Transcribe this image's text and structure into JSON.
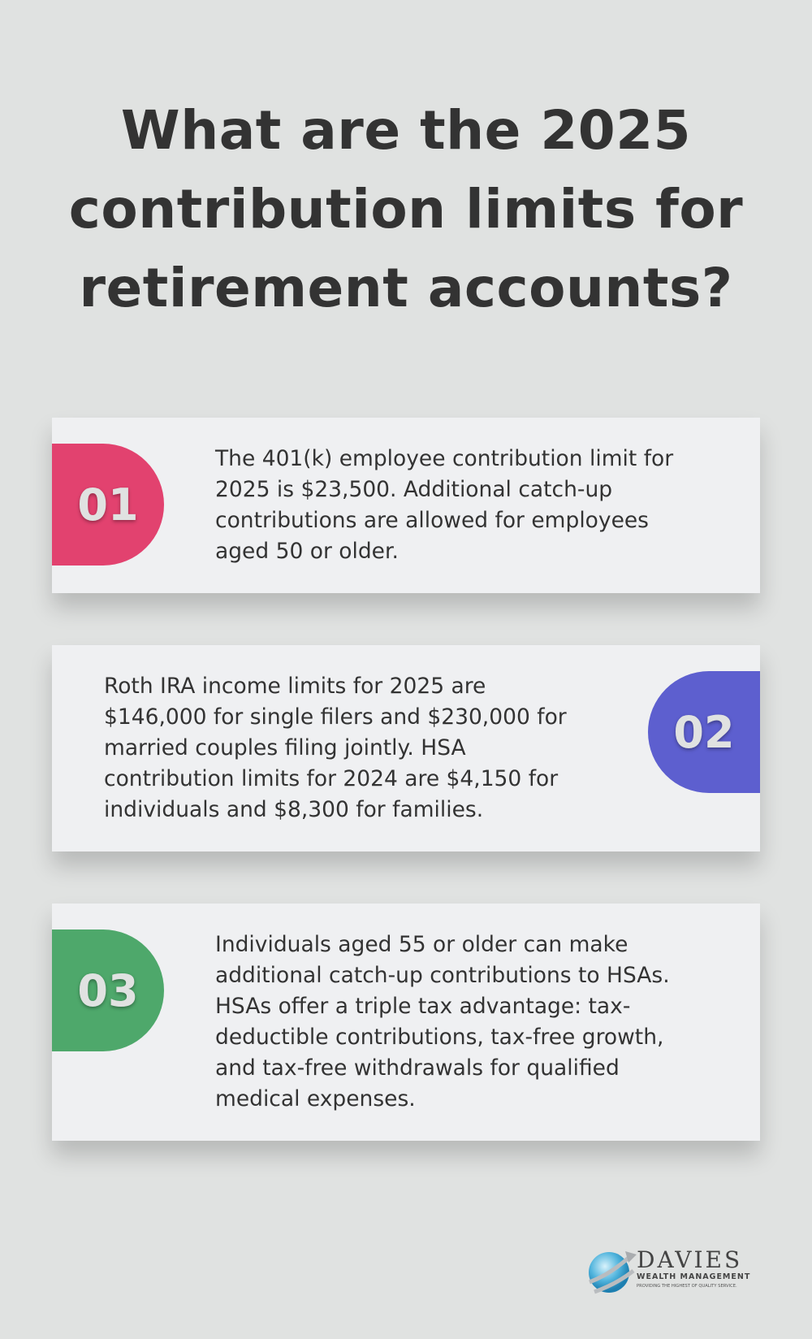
{
  "title": "What are the 2025 contribution limits for retirement accounts?",
  "cards": [
    {
      "number": "01",
      "color": "#e2426f",
      "text": "The 401(k) employee contribution limit for 2025 is $23,500. Additional catch-up contributions are allowed for employees aged 50 or older."
    },
    {
      "number": "02",
      "color": "#5d5fcf",
      "text": "Roth IRA income limits for 2025 are $146,000 for single filers and $230,000 for married couples filing jointly. HSA contribution limits for 2024 are $4,150 for individuals and $8,300 for families."
    },
    {
      "number": "03",
      "color": "#4ea86b",
      "text": "Individuals aged 55 or older can make additional catch-up contributions to HSAs. HSAs offer a triple tax advantage: tax-deductible contributions, tax-free growth, and tax-free withdrawals for qualified medical expenses."
    }
  ],
  "logo": {
    "name": "DAVIES",
    "subtitle": "WEALTH MANAGEMENT",
    "tagline": "PROVIDING THE HIGHEST OF QUALITY SERVICE."
  }
}
